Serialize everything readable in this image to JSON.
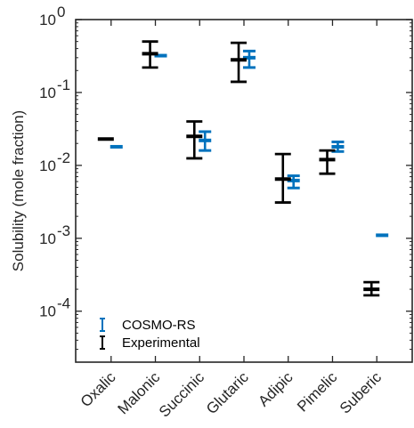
{
  "chart_data": {
    "type": "errorbar",
    "title": "",
    "xlabel": "",
    "ylabel": "Solubility (mole fraction)",
    "yscale": "log",
    "ylim": [
      2e-05,
      1
    ],
    "yticks": [
      {
        "value": 1,
        "base": "10",
        "exp": "0"
      },
      {
        "value": 0.1,
        "base": "10",
        "exp": "-1"
      },
      {
        "value": 0.01,
        "base": "10",
        "exp": "-2"
      },
      {
        "value": 0.001,
        "base": "10",
        "exp": "-3"
      },
      {
        "value": 0.0001,
        "base": "10",
        "exp": "-4"
      }
    ],
    "categories": [
      "Oxalic",
      "Malonic",
      "Succinic",
      "Glutaric",
      "Adipic",
      "Pimelic",
      "Suberic"
    ],
    "grid": false,
    "legend_position": "bottom-left",
    "series": [
      {
        "name": "COSMO-RS",
        "color": "#0072BD",
        "values": [
          0.018,
          0.32,
          0.022,
          0.3,
          0.0062,
          0.018,
          0.0011
        ],
        "lower": [
          0.018,
          0.32,
          0.016,
          0.22,
          0.0049,
          0.0155,
          0.0011
        ],
        "upper": [
          0.018,
          0.32,
          0.029,
          0.37,
          0.0072,
          0.021,
          0.0011
        ]
      },
      {
        "name": "Experimental",
        "color": "#000000",
        "values": [
          0.023,
          0.34,
          0.025,
          0.28,
          0.0065,
          0.012,
          0.0002
        ],
        "lower": [
          0.023,
          0.22,
          0.0125,
          0.14,
          0.0031,
          0.0077,
          0.000165
        ],
        "upper": [
          0.023,
          0.5,
          0.04,
          0.48,
          0.0143,
          0.016,
          0.00025
        ]
      }
    ]
  }
}
